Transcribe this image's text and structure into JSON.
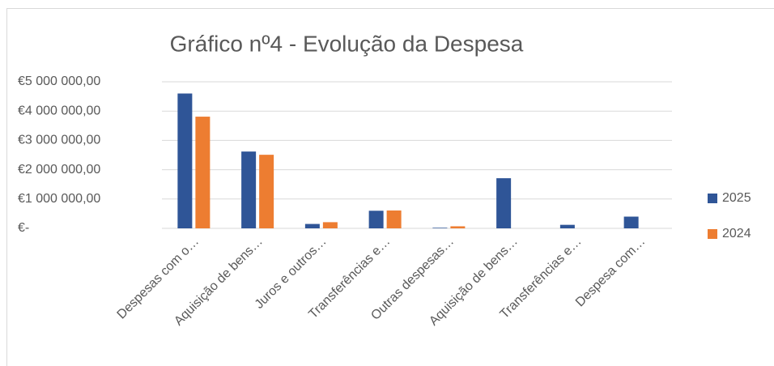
{
  "chart_data": {
    "type": "bar",
    "title": "Gráfico nº4 - Evolução da Despesa",
    "categories": [
      "Despesas com o…",
      "Aquisição de bens…",
      "Juros e outros…",
      "Transferências e…",
      "Outras despesas…",
      "Aquisição de bens…",
      "Transferências e…",
      "Despesa com…"
    ],
    "series": [
      {
        "name": "2025",
        "color": "#2f5597",
        "values": [
          4600000,
          2620000,
          150000,
          600000,
          20000,
          1710000,
          120000,
          400000
        ]
      },
      {
        "name": "2024",
        "color": "#ed7d31",
        "values": [
          3810000,
          2510000,
          210000,
          610000,
          70000,
          0,
          0,
          0
        ]
      }
    ],
    "ylim": [
      0,
      5000000
    ],
    "yticks": [
      {
        "value": 0,
        "label": "€-"
      },
      {
        "value": 1000000,
        "label": "€1 000 000,00"
      },
      {
        "value": 2000000,
        "label": "€2 000 000,00"
      },
      {
        "value": 3000000,
        "label": "€3 000 000,00"
      },
      {
        "value": 4000000,
        "label": "€4 000 000,00"
      },
      {
        "value": 5000000,
        "label": "€5 000 000,00"
      }
    ],
    "grid": true,
    "legend": "right"
  }
}
